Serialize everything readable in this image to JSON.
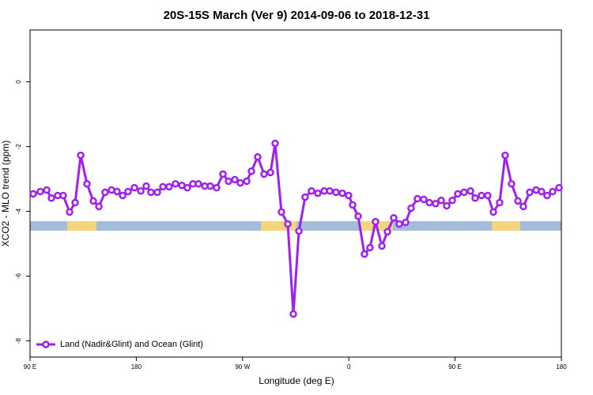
{
  "chart_data": {
    "type": "line",
    "title": "20S-15S March (Ver 9)   2014-09-06 to 2018-12-31",
    "xlabel": "Longitude (deg E)",
    "ylabel": "XCO2 - MLO trend (ppm)",
    "xlim": [
      90,
      540
    ],
    "ylim": [
      -8.5,
      1.6
    ],
    "xticks": [
      {
        "value": 90,
        "label": "90 E"
      },
      {
        "value": 180,
        "label": "180"
      },
      {
        "value": 270,
        "label": "90 W"
      },
      {
        "value": 360,
        "label": "0"
      },
      {
        "value": 450,
        "label": "90 E"
      },
      {
        "value": 540,
        "label": "180"
      }
    ],
    "yticks": [
      0,
      -2,
      -4,
      -6,
      -8
    ],
    "grid": false,
    "legend": "bottom-left",
    "surface_strip": {
      "y": -4.45,
      "ocean_color": "#a4bcdc",
      "land_color": "#f5d47e",
      "land": [
        [
          121.5,
          146.3
        ],
        [
          285.5,
          315.7
        ],
        [
          369.3,
          397.4
        ],
        [
          481.1,
          505.2
        ]
      ]
    },
    "series": [
      {
        "name": "Land (Nadir&Glint) and Ocean (Glint)",
        "color": "#a020f0",
        "x": [
          92.7,
          98.7,
          104.1,
          108.1,
          113.4,
          118.1,
          123.5,
          128.2,
          132.9,
          138.2,
          143.6,
          148.3,
          153.6,
          159.0,
          163.7,
          168.4,
          173.0,
          178.4,
          183.8,
          188.4,
          192.4,
          197.8,
          202.5,
          207.8,
          213.2,
          218.6,
          223.2,
          227.9,
          232.6,
          238.0,
          242.7,
          248.0,
          253.4,
          258.1,
          263.4,
          268.1,
          273.5,
          277.5,
          282.8,
          288.2,
          293.6,
          297.6,
          302.9,
          308.3,
          313.0,
          317.7,
          323.0,
          328.4,
          333.7,
          339.1,
          343.8,
          349.1,
          354.5,
          359.8,
          363.2,
          367.9,
          373.2,
          377.9,
          382.6,
          388.0,
          392.7,
          398.0,
          402.7,
          408.1,
          412.7,
          418.1,
          423.5,
          428.2,
          433.5,
          438.2,
          442.9,
          447.6,
          452.3,
          457.6,
          463.0,
          467.0,
          472.3,
          477.7,
          482.4,
          487.7,
          492.4,
          497.8,
          503.2,
          507.8,
          513.2,
          518.6,
          523.2,
          527.9,
          532.6,
          538.0
        ],
        "values": [
          -3.46,
          -3.39,
          -3.34,
          -3.59,
          -3.51,
          -3.51,
          -4.02,
          -3.73,
          -2.27,
          -3.15,
          -3.68,
          -3.85,
          -3.41,
          -3.34,
          -3.39,
          -3.51,
          -3.39,
          -3.27,
          -3.37,
          -3.22,
          -3.41,
          -3.41,
          -3.24,
          -3.24,
          -3.15,
          -3.2,
          -3.27,
          -3.15,
          -3.15,
          -3.22,
          -3.22,
          -3.27,
          -2.85,
          -3.07,
          -3.02,
          -3.12,
          -3.07,
          -2.76,
          -2.32,
          -2.85,
          -2.8,
          -1.9,
          -4.02,
          -4.39,
          -7.17,
          -4.61,
          -3.56,
          -3.37,
          -3.44,
          -3.37,
          -3.37,
          -3.41,
          -3.44,
          -3.51,
          -3.8,
          -4.15,
          -5.32,
          -5.12,
          -4.32,
          -5.07,
          -4.63,
          -4.2,
          -4.39,
          -4.34,
          -3.9,
          -3.61,
          -3.63,
          -3.73,
          -3.76,
          -3.66,
          -3.83,
          -3.66,
          -3.46,
          -3.41,
          -3.37,
          -3.59,
          -3.51,
          -3.51,
          -4.02,
          -3.73,
          -2.27,
          -3.15,
          -3.68,
          -3.85,
          -3.41,
          -3.34,
          -3.39,
          -3.51,
          -3.39,
          -3.27
        ]
      }
    ]
  }
}
